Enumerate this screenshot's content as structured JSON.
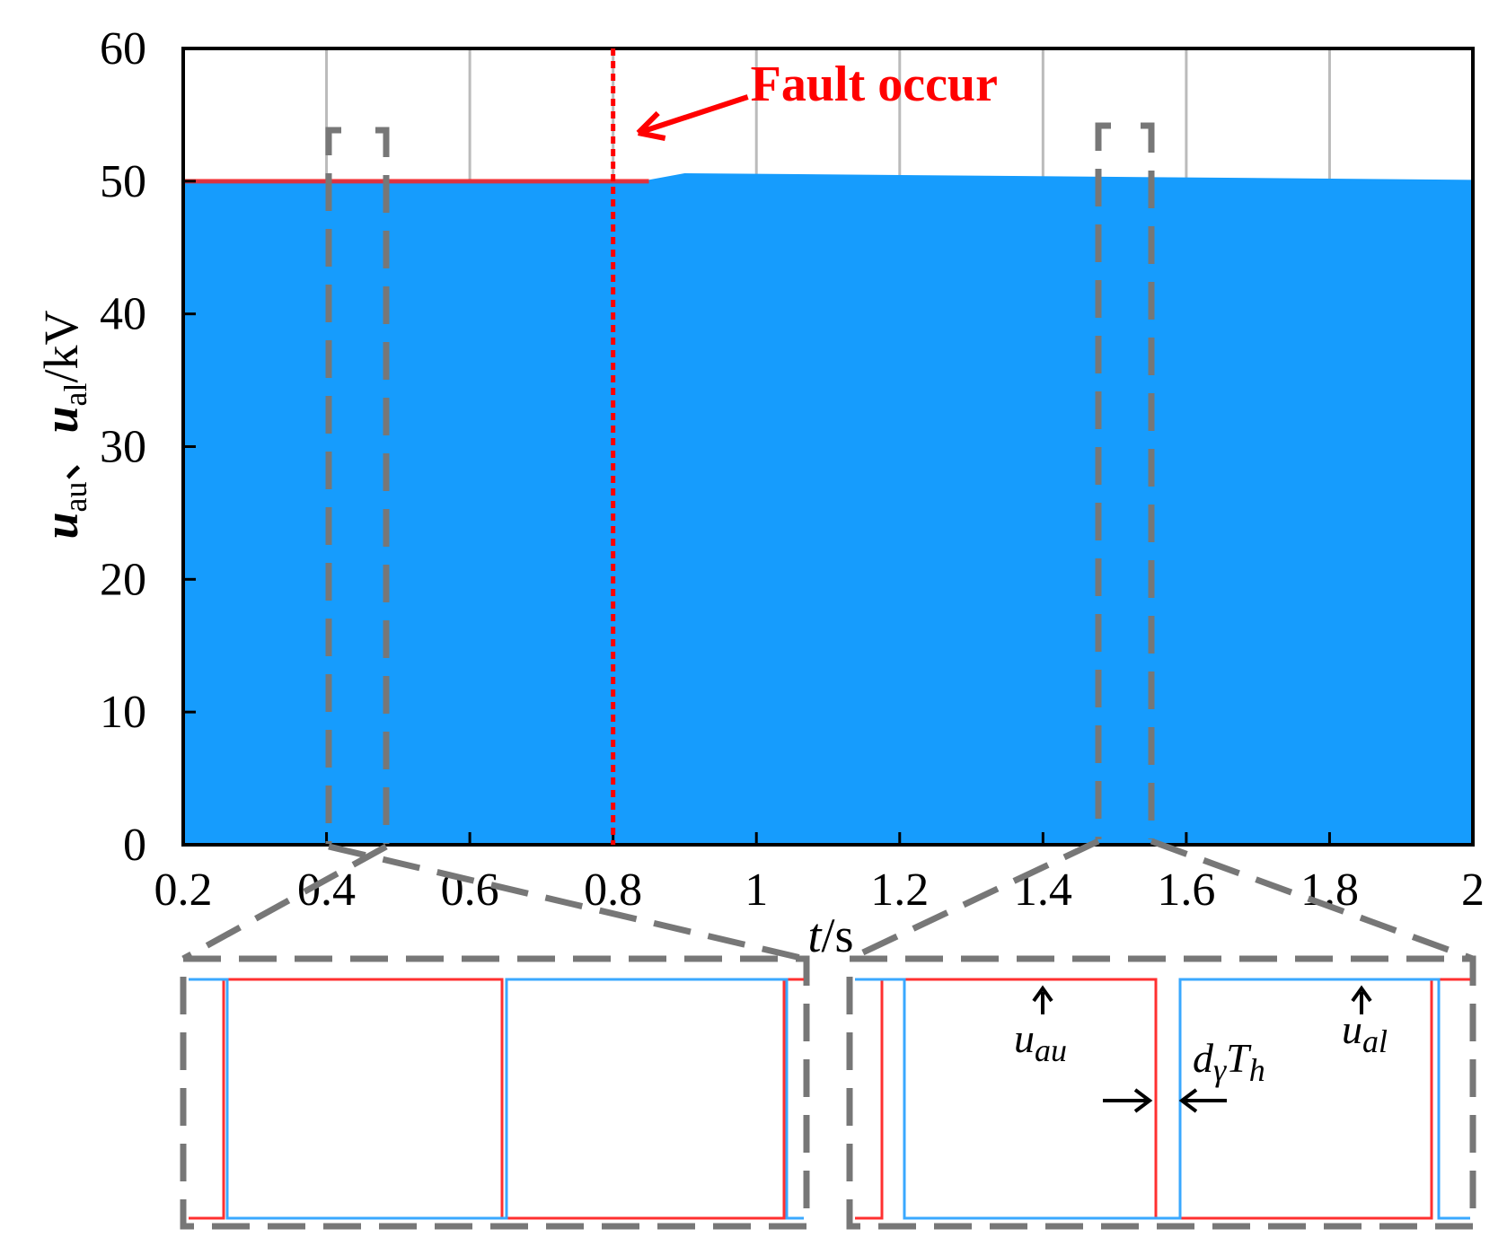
{
  "chart_data": {
    "type": "area",
    "x": [
      0.2,
      0.8,
      0.85,
      0.9,
      2
    ],
    "series": [
      {
        "name": "u_al",
        "color": "#169cfd",
        "values": [
          50,
          50,
          50,
          50.5,
          50
        ]
      },
      {
        "name": "u_au",
        "color": "#ff2020",
        "values": [
          50,
          50,
          50,
          null,
          null
        ]
      }
    ],
    "xlim": [
      0.2,
      2
    ],
    "xticks": [
      0.2,
      0.4,
      0.6,
      0.8,
      1,
      1.2,
      1.4,
      1.6,
      1.8,
      2
    ],
    "ylim": [
      0,
      60
    ],
    "yticks": [
      0,
      10,
      20,
      30,
      40,
      50,
      60
    ],
    "grid": true,
    "xlabel": [
      "t",
      "/s"
    ],
    "ylabel": [
      "u",
      "au",
      "、",
      "u",
      "al",
      "/kV"
    ],
    "annotations": [
      {
        "text": "Fault occur",
        "x": 0.8,
        "color": "#ff0000"
      }
    ],
    "inset_labels": {
      "uau": [
        "u",
        "au"
      ],
      "ual": [
        "u",
        "al"
      ],
      "duty": [
        "d",
        "γ",
        "T",
        "h"
      ]
    }
  }
}
